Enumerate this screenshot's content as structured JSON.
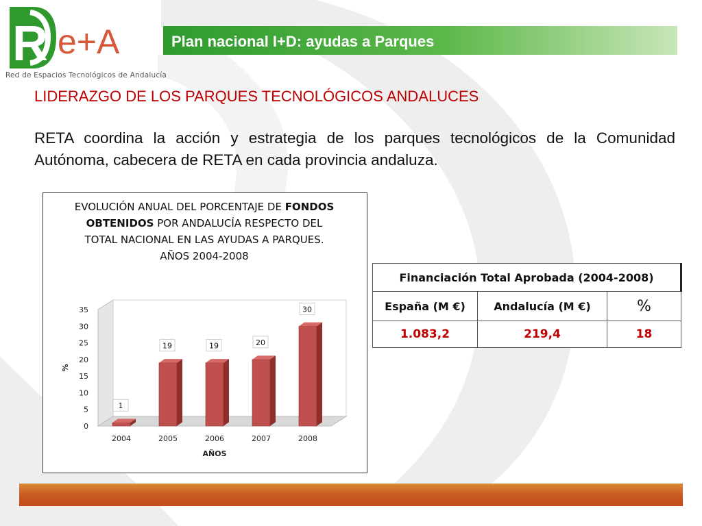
{
  "logo": {
    "letters_left": "R",
    "letters_right": "e+A",
    "subtitle": "Red de Espacios Tecnológicos de Andalucía"
  },
  "header": {
    "title": "Plan nacional I+D: ayudas a Parques"
  },
  "heading": "LIDERAZGO DE LOS PARQUES TECNOLÓGICOS ANDALUCES",
  "paragraph": "RETA coordina la acción y estrategia de los parques tecnológicos de la Comunidad Autónoma, cabecera de RETA en cada provincia andaluza.",
  "colors": {
    "header_green": "#2e9a2e",
    "heading_red": "#c00000",
    "bar_red": "#c0504d",
    "footer_orange": "#c95a22"
  },
  "chart_data": {
    "type": "bar",
    "style": "3d",
    "title_parts": [
      "EVOLUCIÓN ANUAL DEL PORCENTAJE DE ",
      "FONDOS OBTENIDOS",
      " POR ANDALUCÍA RESPECTO DEL TOTAL NACIONAL EN LAS AYUDAS A PARQUES.",
      "AÑOS 2004-2008"
    ],
    "categories": [
      "2004",
      "2005",
      "2006",
      "2007",
      "2008"
    ],
    "values": [
      1,
      19,
      19,
      20,
      30
    ],
    "data_labels": [
      "1",
      "19",
      "19",
      "20",
      "30"
    ],
    "xlabel": "AÑOS",
    "ylabel": "%",
    "ylim": [
      0,
      35
    ],
    "yticks": [
      "0",
      "5",
      "10",
      "15",
      "20",
      "25",
      "30",
      "35"
    ],
    "grid": false,
    "legend": "none"
  },
  "table": {
    "title": "Financiación  Total Aprobada (2004-2008)",
    "columns": [
      "España (M €)",
      "Andalucía (M €)",
      "%"
    ],
    "row": [
      "1.083,2",
      "219,4",
      "18"
    ]
  }
}
